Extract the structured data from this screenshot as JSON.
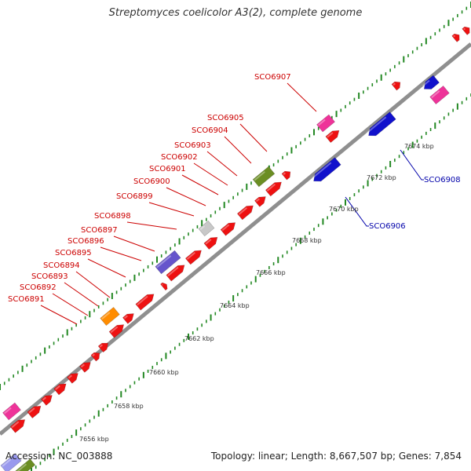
{
  "header": {
    "title": "Streptomyces coelicolor A3(2), complete genome"
  },
  "footer": {
    "accession": "Accession: NC_003888",
    "summary": "Topology: linear; Length: 8,667,507 bp; Genes: 7,854"
  },
  "colors": {
    "forward_gene": "#ee1111",
    "reverse_gene": "#1111cc",
    "label_forward": "#cc0000",
    "label_reverse": "#0000aa",
    "backbone": "#8f8f8f",
    "ticks": "#228822",
    "magenta": "#ee3399",
    "purple": "#6655cc",
    "olive": "#6b8e23",
    "orange": "#ff8c00",
    "grey": "#c8c8c8",
    "light_purple": "#9999ee"
  },
  "scale_labels": [
    "7656 kbp",
    "7658 kbp",
    "7660 kbp",
    "7662 kbp",
    "7664 kbp",
    "7666 kbp",
    "7668 kbp",
    "7670 kbp",
    "7672 kbp",
    "7674 kbp"
  ],
  "forward_gene_labels": [
    "SCO6891",
    "SCO6892",
    "SCO6893",
    "SCO6894",
    "SCO6895",
    "SCO6896",
    "SCO6897",
    "SCO6898",
    "SCO6899",
    "SCO6900",
    "SCO6901",
    "SCO6902",
    "SCO6903",
    "SCO6904",
    "SCO6905",
    "SCO6907"
  ],
  "reverse_gene_labels": [
    "SCO6906",
    "SCO6908"
  ]
}
